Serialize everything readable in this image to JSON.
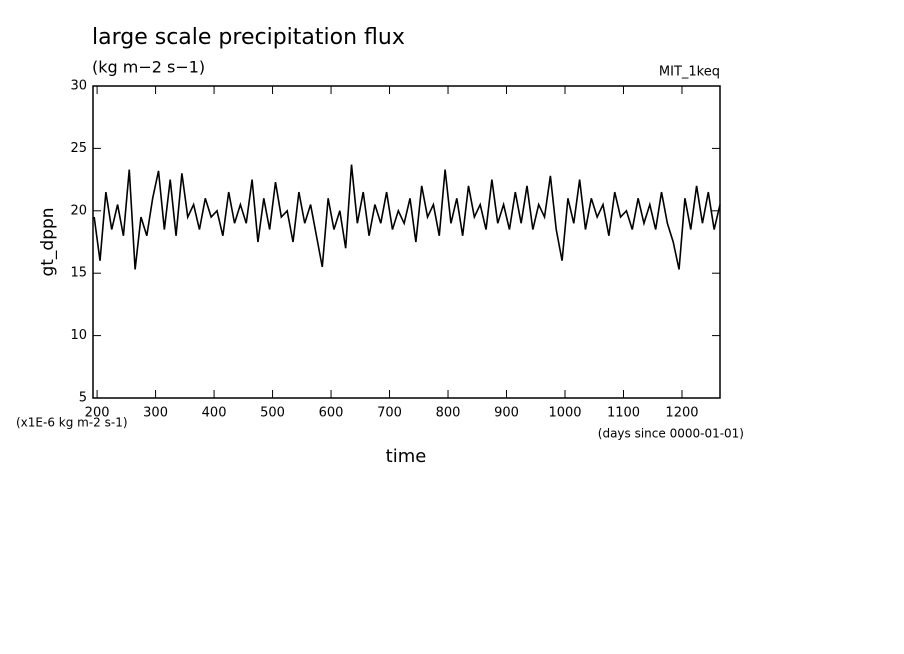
{
  "chart_data": {
    "type": "line",
    "title": "large scale precipitation flux",
    "subtitle": "(kg m−2 s−1)",
    "annotation": "MIT_1keq",
    "ylabel": "gt_dppn",
    "xlabel": "time",
    "y_unit_note": "(x1E-6 kg m-2 s-1)",
    "x_unit_note": "(days since 0000-01-01)",
    "xlim": [
      193,
      1265
    ],
    "ylim": [
      5,
      30
    ],
    "xticks": [
      200,
      300,
      400,
      500,
      600,
      700,
      800,
      900,
      1000,
      1100,
      1200
    ],
    "yticks": [
      5,
      10,
      15,
      20,
      25,
      30
    ],
    "color": "#000000",
    "x": [
      195,
      205,
      215,
      225,
      235,
      245,
      255,
      265,
      275,
      285,
      295,
      305,
      315,
      325,
      335,
      345,
      355,
      365,
      375,
      385,
      395,
      405,
      415,
      425,
      435,
      445,
      455,
      465,
      475,
      485,
      495,
      505,
      515,
      525,
      535,
      545,
      555,
      565,
      575,
      585,
      595,
      605,
      615,
      625,
      635,
      645,
      655,
      665,
      675,
      685,
      695,
      705,
      715,
      725,
      735,
      745,
      755,
      765,
      775,
      785,
      795,
      805,
      815,
      825,
      835,
      845,
      855,
      865,
      875,
      885,
      895,
      905,
      915,
      925,
      935,
      945,
      955,
      965,
      975,
      985,
      995,
      1005,
      1015,
      1025,
      1035,
      1045,
      1055,
      1065,
      1075,
      1085,
      1095,
      1105,
      1115,
      1125,
      1135,
      1145,
      1155,
      1165,
      1175,
      1185,
      1195,
      1205,
      1215,
      1225,
      1235,
      1245,
      1255,
      1265
    ],
    "values": [
      19.5,
      16.0,
      21.5,
      18.5,
      20.5,
      18.0,
      23.3,
      15.3,
      19.5,
      18.0,
      21.0,
      23.2,
      18.5,
      22.5,
      18.0,
      23.0,
      19.5,
      20.5,
      18.5,
      21.0,
      19.5,
      20.0,
      18.0,
      21.5,
      19.0,
      20.5,
      19.0,
      22.5,
      17.5,
      21.0,
      18.5,
      22.3,
      19.5,
      20.0,
      17.5,
      21.5,
      19.0,
      20.5,
      18.0,
      15.5,
      21.0,
      18.5,
      20.0,
      17.0,
      23.7,
      19.0,
      21.5,
      18.0,
      20.5,
      19.0,
      21.5,
      18.5,
      20.0,
      19.0,
      21.0,
      17.5,
      22.0,
      19.5,
      20.5,
      18.0,
      23.3,
      19.0,
      21.0,
      18.0,
      22.0,
      19.5,
      20.5,
      18.5,
      22.5,
      19.0,
      20.5,
      18.5,
      21.5,
      19.0,
      22.0,
      18.5,
      20.5,
      19.5,
      22.8,
      18.5,
      16.0,
      21.0,
      19.0,
      22.5,
      18.5,
      21.0,
      19.5,
      20.5,
      18.0,
      21.5,
      19.5,
      20.0,
      18.5,
      21.0,
      19.0,
      20.5,
      18.5,
      21.5,
      19.0,
      17.5,
      15.3,
      21.0,
      18.5,
      22.0,
      19.0,
      21.5,
      18.5,
      20.5
    ]
  }
}
